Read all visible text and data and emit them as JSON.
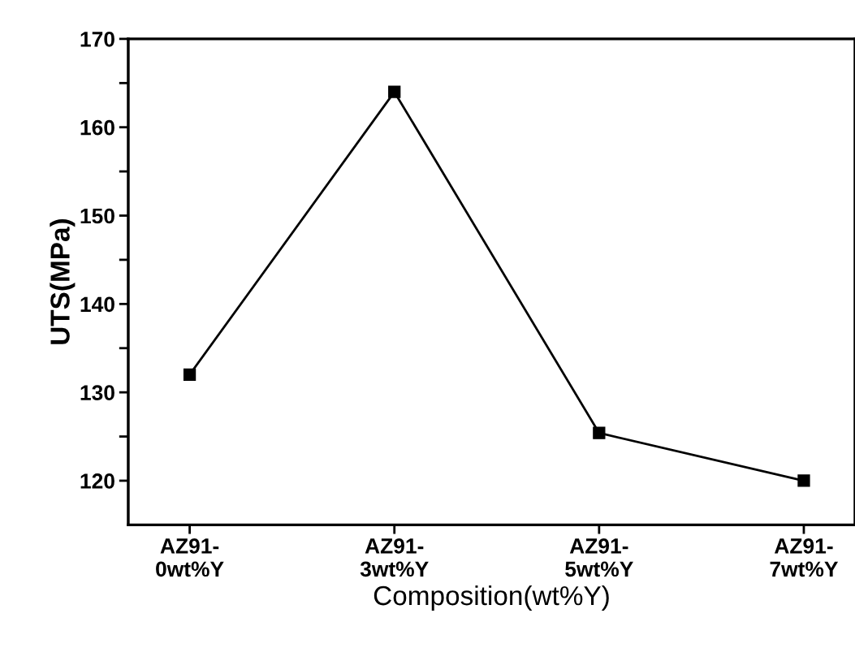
{
  "chart_data": {
    "type": "line",
    "xlabel": "Composition(wt%Y)",
    "ylabel": "UTS(MPa)",
    "categories": [
      "AZ91-\n0wt%Y",
      "AZ91-\n3wt%Y",
      "AZ91-\n5wt%Y",
      "AZ91-\n7wt%Y"
    ],
    "series": [
      {
        "color": "#000000",
        "values": [
          132,
          164,
          125.4,
          120
        ]
      }
    ],
    "ylim": [
      115,
      170
    ],
    "yticks": [
      120,
      {
        "value": 125,
        "label": null
      },
      130,
      {
        "value": 135,
        "label": null
      },
      140,
      {
        "value": 145,
        "label": null
      },
      150,
      {
        "value": 155,
        "label": null
      },
      160,
      {
        "value": 165,
        "label": null
      },
      170
    ],
    "marker": "square",
    "line_style": "solid",
    "grid": false,
    "legend": false
  }
}
